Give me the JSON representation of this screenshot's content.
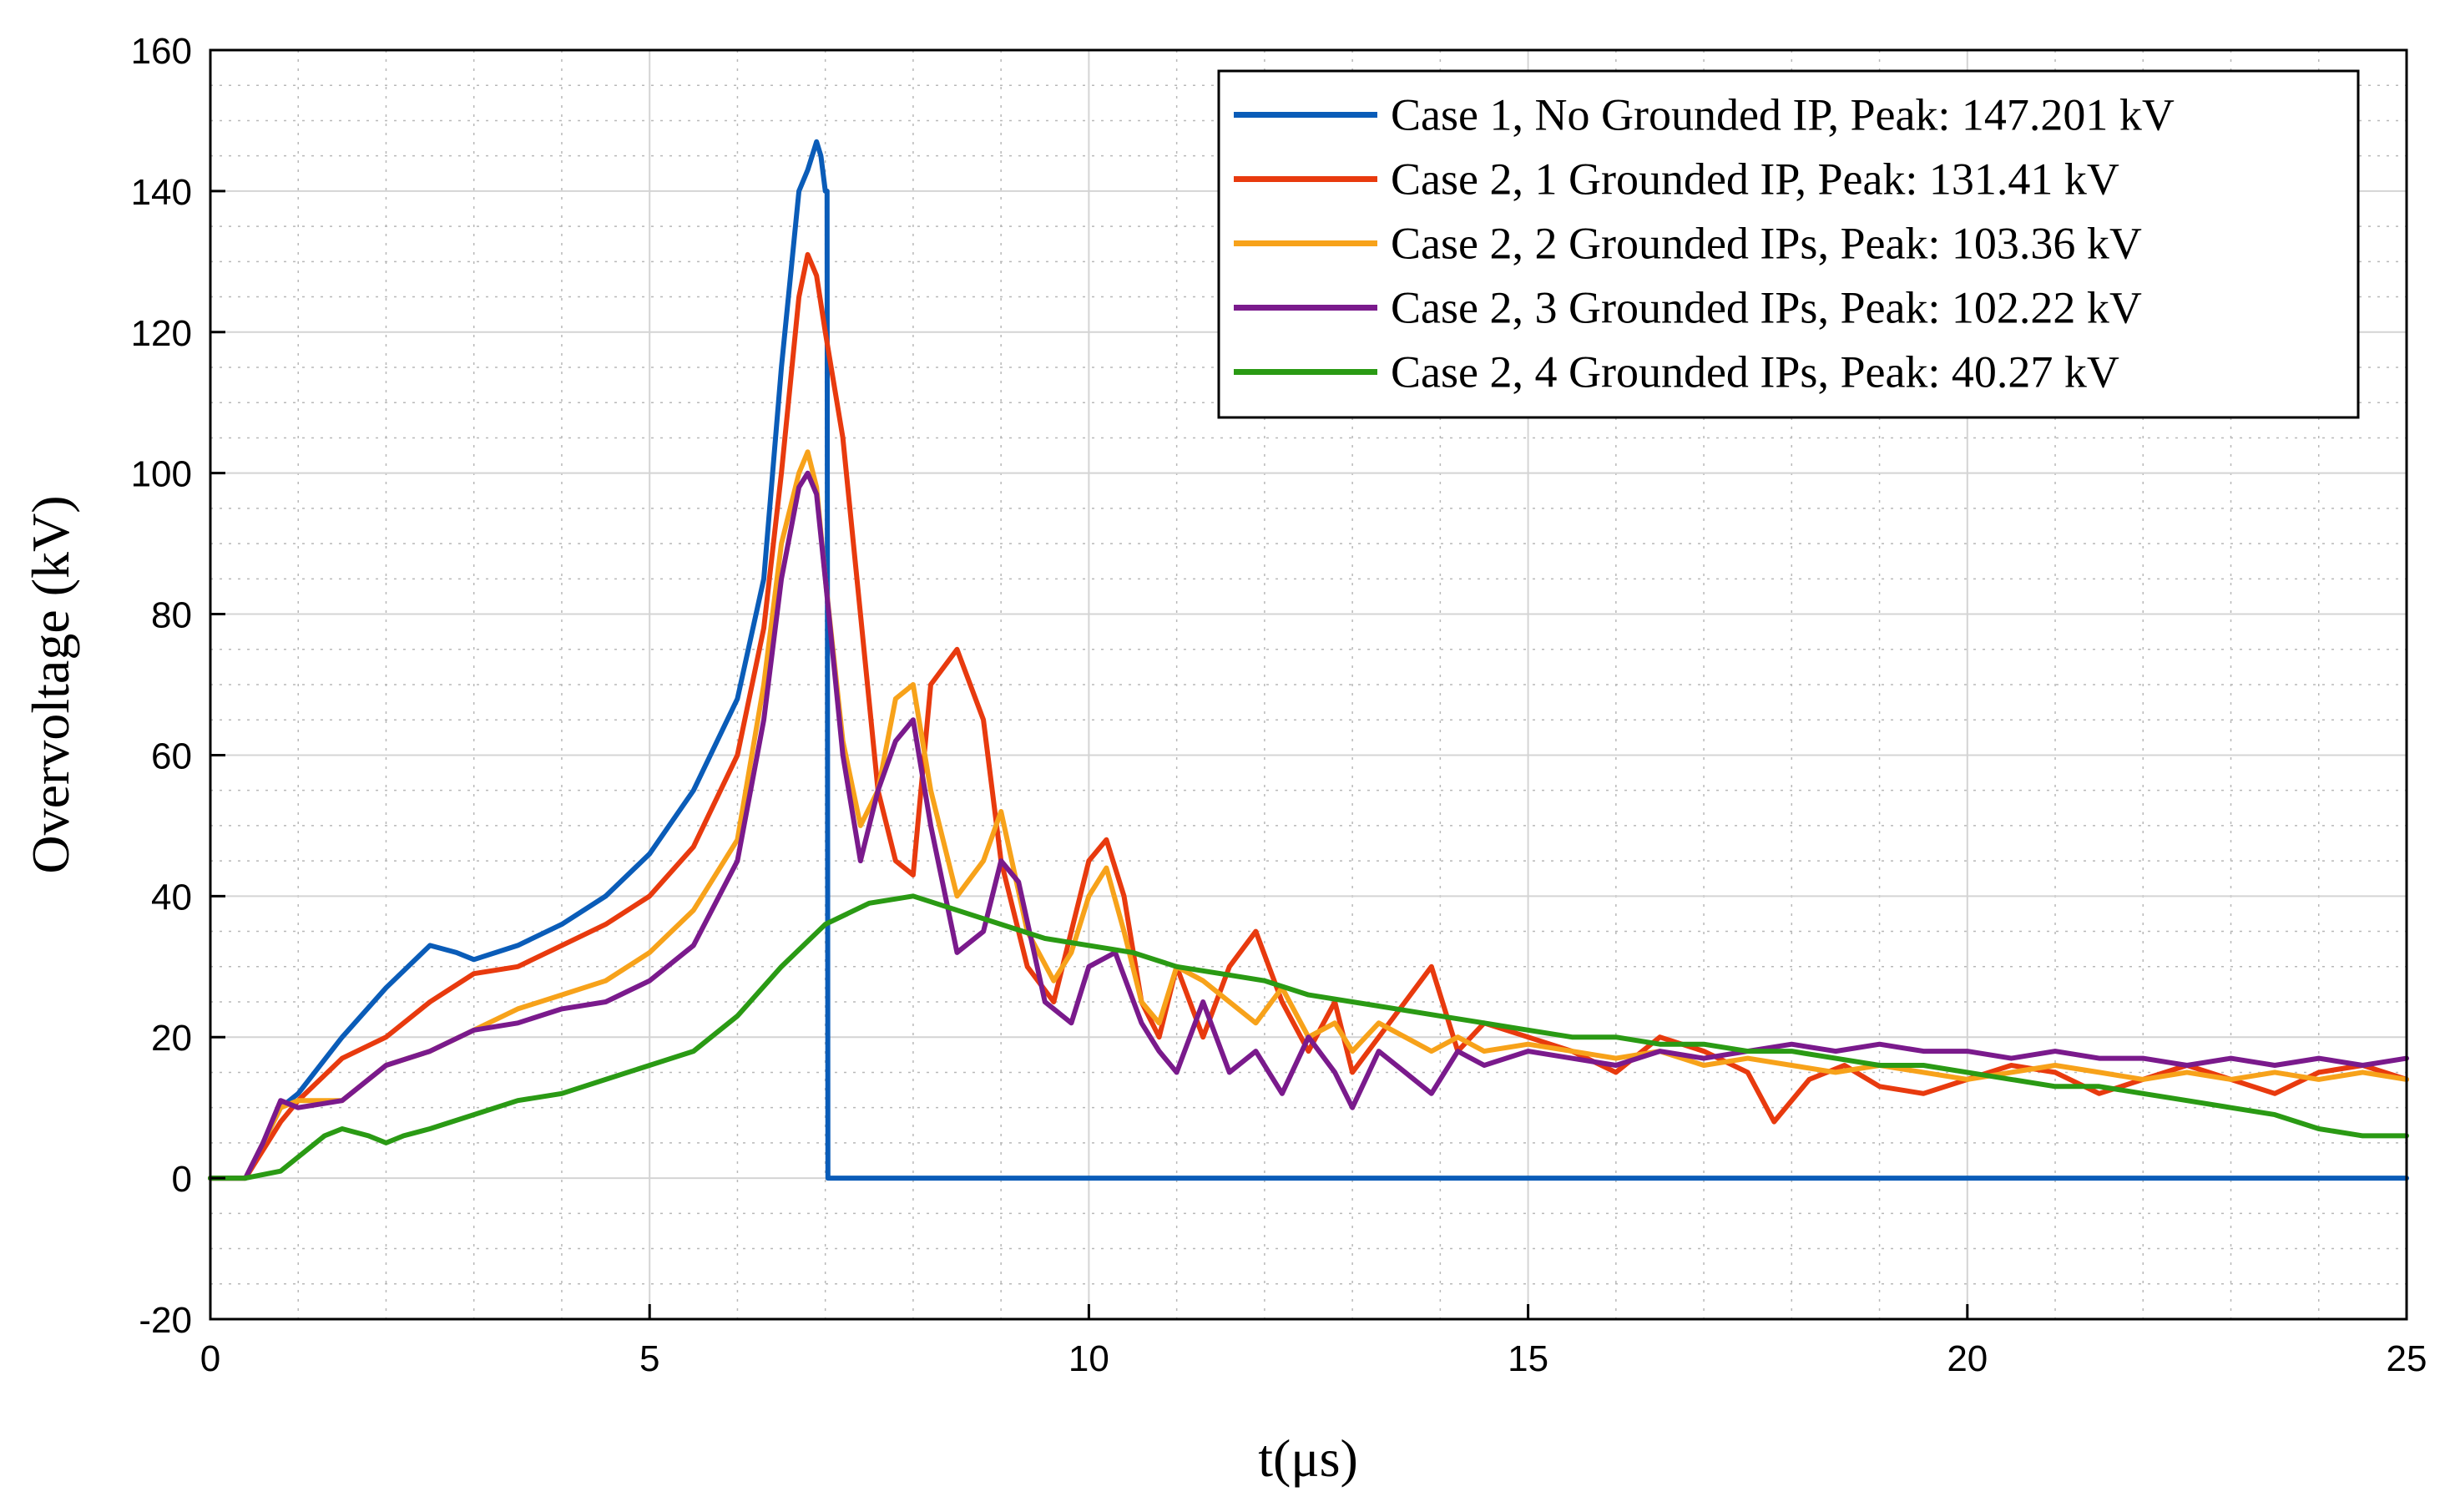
{
  "chart_data": {
    "type": "line",
    "title": "",
    "xlabel": "t(μs)",
    "ylabel": "Overvoltage (kV)",
    "xlim": [
      0,
      25
    ],
    "ylim": [
      -20,
      160
    ],
    "xticks": [
      0,
      5,
      10,
      15,
      20,
      25
    ],
    "yticks": [
      -20,
      0,
      20,
      40,
      60,
      80,
      100,
      120,
      140,
      160
    ],
    "grid": true,
    "minor_grid": true,
    "legend_location": "top-right",
    "series": [
      {
        "name": "Case 1, No Grounded IP, Peak: 147.201 kV",
        "color": "#0A5CB8",
        "x": [
          0,
          0.4,
          0.8,
          1.0,
          1.5,
          2.0,
          2.5,
          2.8,
          3.0,
          3.5,
          4.0,
          4.5,
          5.0,
          5.5,
          6.0,
          6.3,
          6.5,
          6.7,
          6.8,
          6.9,
          6.95,
          7.0,
          7.02,
          7.03,
          25
        ],
        "values": [
          0,
          0,
          10,
          12,
          20,
          27,
          33,
          32,
          31,
          33,
          36,
          40,
          46,
          55,
          68,
          85,
          115,
          140,
          143,
          147,
          145,
          140,
          140,
          0,
          0
        ]
      },
      {
        "name": "Case 2, 1 Grounded IP, Peak: 131.41 kV",
        "color": "#E83A0E",
        "x": [
          0,
          0.4,
          0.8,
          1.0,
          1.5,
          2.0,
          2.5,
          3.0,
          3.5,
          4.0,
          4.5,
          5.0,
          5.5,
          6.0,
          6.3,
          6.5,
          6.7,
          6.8,
          6.9,
          7.0,
          7.2,
          7.4,
          7.6,
          7.8,
          8.0,
          8.2,
          8.5,
          8.8,
          9.0,
          9.3,
          9.6,
          9.8,
          10.0,
          10.2,
          10.4,
          10.6,
          10.8,
          11.0,
          11.3,
          11.6,
          11.9,
          12.2,
          12.5,
          12.8,
          13.0,
          13.3,
          13.6,
          13.9,
          14.2,
          14.5,
          15.0,
          15.5,
          16.0,
          16.5,
          17.0,
          17.5,
          17.8,
          18.2,
          18.6,
          19.0,
          19.5,
          20.0,
          20.5,
          21.0,
          21.5,
          22.0,
          22.5,
          23.0,
          23.5,
          24.0,
          24.5,
          25
        ],
        "values": [
          0,
          0,
          8,
          11,
          17,
          20,
          25,
          29,
          30,
          33,
          36,
          40,
          47,
          60,
          78,
          100,
          125,
          131,
          128,
          120,
          105,
          80,
          55,
          45,
          43,
          70,
          75,
          65,
          45,
          30,
          25,
          35,
          45,
          48,
          40,
          25,
          20,
          30,
          20,
          30,
          35,
          25,
          18,
          25,
          15,
          20,
          25,
          30,
          18,
          22,
          20,
          18,
          15,
          20,
          18,
          15,
          8,
          14,
          16,
          13,
          12,
          14,
          16,
          15,
          12,
          14,
          16,
          14,
          12,
          15,
          16,
          14
        ]
      },
      {
        "name": "Case 2, 2 Grounded IPs, Peak: 103.36 kV",
        "color": "#F7A21A",
        "x": [
          0,
          0.4,
          0.8,
          1.0,
          1.5,
          2.0,
          2.5,
          3.0,
          3.5,
          4.0,
          4.5,
          5.0,
          5.5,
          6.0,
          6.3,
          6.5,
          6.7,
          6.8,
          6.9,
          7.0,
          7.2,
          7.4,
          7.6,
          7.8,
          8.0,
          8.2,
          8.5,
          8.8,
          9.0,
          9.3,
          9.6,
          9.8,
          10.0,
          10.2,
          10.4,
          10.6,
          10.8,
          11.0,
          11.3,
          11.6,
          11.9,
          12.2,
          12.5,
          12.8,
          13.0,
          13.3,
          13.6,
          13.9,
          14.2,
          14.5,
          15.0,
          15.5,
          16.0,
          16.5,
          17.0,
          17.5,
          18.0,
          18.5,
          19.0,
          19.5,
          20.0,
          20.5,
          21.0,
          21.5,
          22.0,
          22.5,
          23.0,
          23.5,
          24.0,
          24.5,
          25
        ],
        "values": [
          0,
          0,
          10,
          11,
          11,
          16,
          18,
          21,
          24,
          26,
          28,
          32,
          38,
          48,
          70,
          90,
          100,
          103,
          98,
          85,
          62,
          50,
          55,
          68,
          70,
          55,
          40,
          45,
          52,
          35,
          28,
          32,
          40,
          44,
          35,
          25,
          22,
          30,
          28,
          25,
          22,
          27,
          20,
          22,
          18,
          22,
          20,
          18,
          20,
          18,
          19,
          18,
          17,
          18,
          16,
          17,
          16,
          15,
          16,
          15,
          14,
          15,
          16,
          15,
          14,
          15,
          14,
          15,
          14,
          15,
          14
        ]
      },
      {
        "name": "Case 2, 3 Grounded IPs, Peak: 102.22 kV",
        "color": "#7A1A8C",
        "x": [
          0,
          0.4,
          0.6,
          0.8,
          1.0,
          1.5,
          2.0,
          2.5,
          3.0,
          3.5,
          4.0,
          4.5,
          5.0,
          5.5,
          6.0,
          6.3,
          6.5,
          6.7,
          6.8,
          6.9,
          7.0,
          7.2,
          7.4,
          7.6,
          7.8,
          8.0,
          8.2,
          8.5,
          8.8,
          9.0,
          9.2,
          9.5,
          9.8,
          10.0,
          10.3,
          10.6,
          10.8,
          11.0,
          11.3,
          11.6,
          11.9,
          12.2,
          12.5,
          12.8,
          13.0,
          13.3,
          13.6,
          13.9,
          14.2,
          14.5,
          15.0,
          15.5,
          16.0,
          16.5,
          17.0,
          17.5,
          18.0,
          18.5,
          19.0,
          19.5,
          20.0,
          20.5,
          21.0,
          21.5,
          22.0,
          22.5,
          23.0,
          23.5,
          24.0,
          24.5,
          25
        ],
        "values": [
          0,
          0,
          5,
          11,
          10,
          11,
          16,
          18,
          21,
          22,
          24,
          25,
          28,
          33,
          45,
          65,
          85,
          98,
          100,
          97,
          85,
          60,
          45,
          55,
          62,
          65,
          50,
          32,
          35,
          45,
          42,
          25,
          22,
          30,
          32,
          22,
          18,
          15,
          25,
          15,
          18,
          12,
          20,
          15,
          10,
          18,
          15,
          12,
          18,
          16,
          18,
          17,
          16,
          18,
          17,
          18,
          19,
          18,
          19,
          18,
          18,
          17,
          18,
          17,
          17,
          16,
          17,
          16,
          17,
          16,
          17
        ]
      },
      {
        "name": "Case 2, 4 Grounded IPs, Peak: 40.27 kV",
        "color": "#2A9A14",
        "x": [
          0,
          0.4,
          0.8,
          1.0,
          1.3,
          1.5,
          1.8,
          2.0,
          2.2,
          2.5,
          3.0,
          3.5,
          4.0,
          4.5,
          5.0,
          5.5,
          6.0,
          6.5,
          7.0,
          7.5,
          8.0,
          8.5,
          9.0,
          9.5,
          10.0,
          10.5,
          11.0,
          11.5,
          12.0,
          12.5,
          13.0,
          13.5,
          14.0,
          14.5,
          15.0,
          15.5,
          16.0,
          16.5,
          17.0,
          17.5,
          18.0,
          18.5,
          19.0,
          19.5,
          20.0,
          20.5,
          21.0,
          21.5,
          22.0,
          22.5,
          23.0,
          23.5,
          24.0,
          24.5,
          25
        ],
        "values": [
          0,
          0,
          1,
          3,
          6,
          7,
          6,
          5,
          6,
          7,
          9,
          11,
          12,
          14,
          16,
          18,
          23,
          30,
          36,
          39,
          40,
          38,
          36,
          34,
          33,
          32,
          30,
          29,
          28,
          26,
          25,
          24,
          23,
          22,
          21,
          20,
          20,
          19,
          19,
          18,
          18,
          17,
          16,
          16,
          15,
          14,
          13,
          13,
          12,
          11,
          10,
          9,
          7,
          6,
          6
        ]
      }
    ]
  }
}
